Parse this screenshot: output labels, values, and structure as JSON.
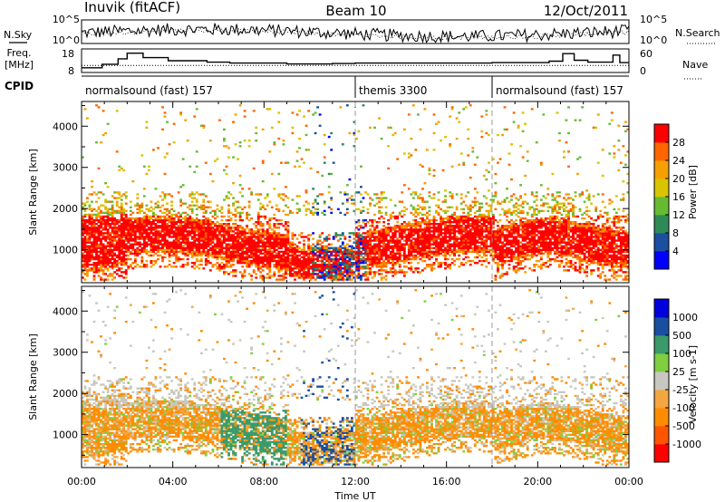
{
  "header": {
    "station": "Inuvik (fitACF)",
    "beam": "Beam 10",
    "date": "12/Oct/2011"
  },
  "left_labels": {
    "nsky": "N.Sky",
    "freq_line1": "Freq.",
    "freq_line2": "[MHz]",
    "cpid": "CPID"
  },
  "right_labels": {
    "nsearch": "N.Search",
    "nave": "Nave"
  },
  "colors": {
    "power": [
      "#0000ff",
      "#1d4fa0",
      "#2e8b57",
      "#66bb33",
      "#d8c400",
      "#f5a000",
      "#ff6600",
      "#ff0000"
    ],
    "velocity": [
      "#ff0000",
      "#ff5500",
      "#ff8c00",
      "#f4a640",
      "#c8c8c0",
      "#7fcf3f",
      "#3a9a6a",
      "#1a4fa0",
      "#0000dd"
    ]
  },
  "chart_data": [
    {
      "type": "line",
      "name": "noise-panel",
      "x_range_hours": [
        0,
        24
      ],
      "left_ticks": [
        "10^5",
        "10^0"
      ],
      "right_ticks": [
        "10^5",
        "10^0"
      ]
    },
    {
      "type": "line",
      "name": "frequency-panel",
      "x_range_hours": [
        0,
        24
      ],
      "left_ticks": [
        "18",
        "8"
      ],
      "right_ticks": [
        "60",
        "0"
      ],
      "ylim_left": [
        8,
        18
      ],
      "ylim_right": [
        0,
        60
      ],
      "freq_steps": [
        {
          "t": 0.0,
          "v": 10.0
        },
        {
          "t": 0.9,
          "v": 11.5
        },
        {
          "t": 1.6,
          "v": 13.8
        },
        {
          "t": 2.0,
          "v": 16.2
        },
        {
          "t": 2.7,
          "v": 14.3
        },
        {
          "t": 3.8,
          "v": 13.0
        },
        {
          "t": 5.5,
          "v": 12.4
        },
        {
          "t": 6.5,
          "v": 12.0
        },
        {
          "t": 9.0,
          "v": 11.6
        },
        {
          "t": 11.0,
          "v": 11.8
        },
        {
          "t": 12.0,
          "v": 12.0
        },
        {
          "t": 18.0,
          "v": 12.2
        },
        {
          "t": 20.5,
          "v": 12.8
        },
        {
          "t": 21.1,
          "v": 16.0
        },
        {
          "t": 21.6,
          "v": 13.2
        },
        {
          "t": 22.2,
          "v": 12.4
        },
        {
          "t": 23.3,
          "v": 15.4
        },
        {
          "t": 23.6,
          "v": 12.2
        },
        {
          "t": 24.0,
          "v": 12.2
        }
      ]
    },
    {
      "type": "table",
      "name": "cpid-bar",
      "segments": [
        {
          "start": 0,
          "end": 12,
          "label": "normalsound (fast) 157"
        },
        {
          "start": 12,
          "end": 18,
          "label": "themis 3300"
        },
        {
          "start": 18,
          "end": 24,
          "label": "normalsound (fast) 157"
        }
      ]
    },
    {
      "type": "heatmap",
      "name": "power-panel",
      "ylabel": "Slant Range [km]",
      "ylim": [
        200,
        4600
      ],
      "yticks": [
        1000,
        2000,
        3000,
        4000
      ],
      "colorbar_label": "Power [dB]",
      "colorbar_ticks": [
        "28",
        "24",
        "20",
        "16",
        "12",
        "8",
        "4"
      ]
    },
    {
      "type": "heatmap",
      "name": "velocity-panel",
      "ylabel": "Slant Range [km]",
      "ylim": [
        200,
        4600
      ],
      "yticks": [
        1000,
        2000,
        3000,
        4000
      ],
      "colorbar_label": "Velocity [m s-1]",
      "colorbar_ticks": [
        "1000",
        "500",
        "100",
        "25",
        "-25",
        "-100",
        "-500",
        "-1000"
      ]
    },
    {
      "type": "table",
      "name": "time-axis",
      "xlabel": "Time UT",
      "xticks": [
        "00:00",
        "04:00",
        "08:00",
        "12:00",
        "16:00",
        "20:00",
        "00:00"
      ]
    }
  ]
}
